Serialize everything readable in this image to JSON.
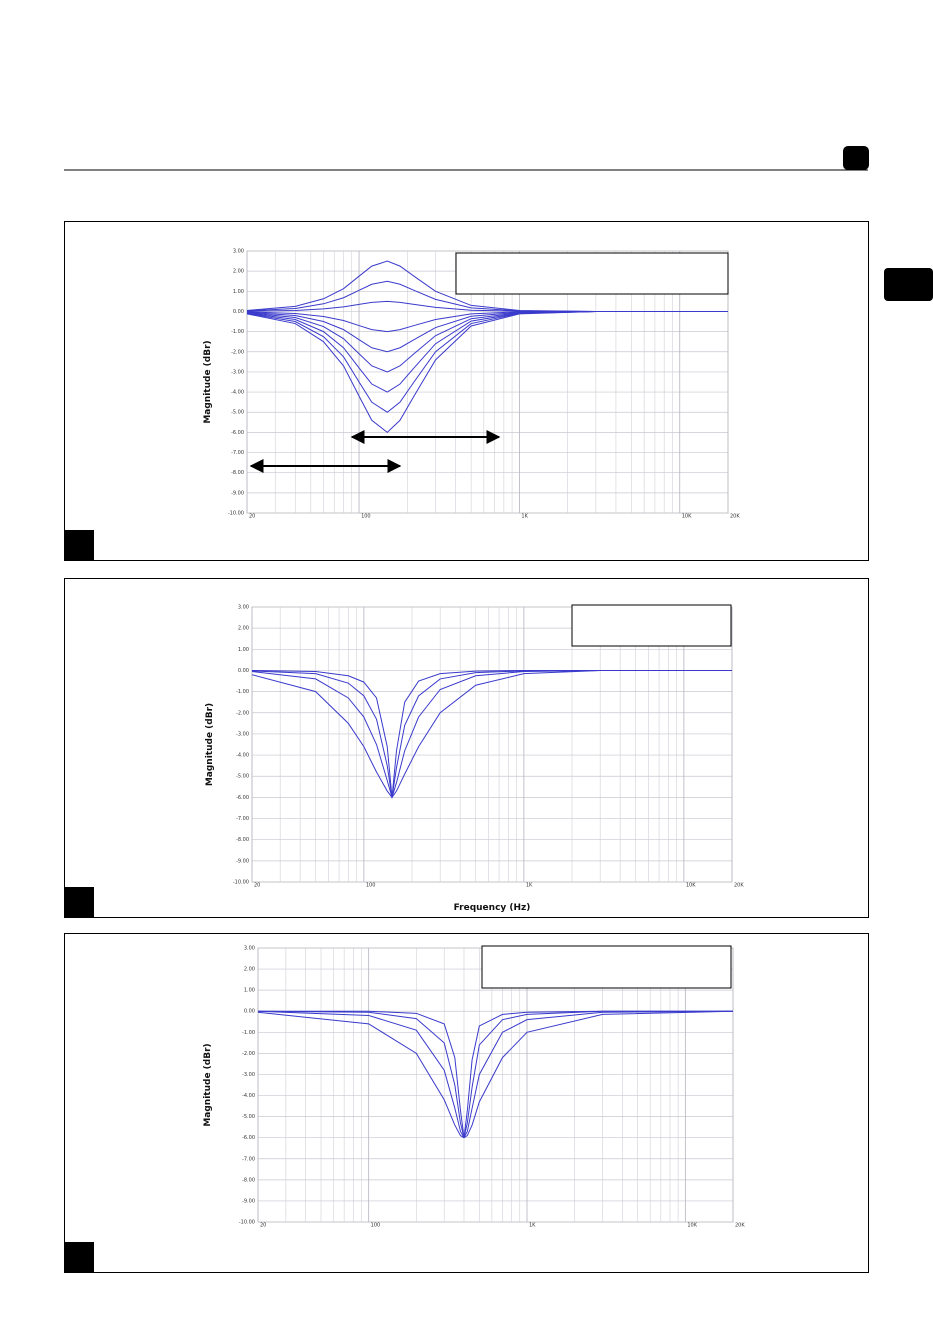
{
  "chart_data": [
    {
      "type": "line",
      "ylabel": "Magnitude (dBr)",
      "xscale": "log",
      "grid": true,
      "xlim": [
        20,
        20000
      ],
      "ylim": [
        -10,
        3
      ],
      "xticks": [
        20,
        100,
        {
          "value": 1000,
          "label": "1K"
        },
        {
          "value": 10000,
          "label": "10K"
        },
        {
          "value": 20000,
          "label": "20K"
        }
      ],
      "yticks": [
        {
          "value": 3,
          "label": "3.00"
        },
        {
          "value": 2,
          "label": "2.00"
        },
        {
          "value": 1,
          "label": "1.00"
        },
        {
          "value": 0,
          "label": "0.00"
        },
        {
          "value": -1,
          "label": "-1.00"
        },
        {
          "value": -2,
          "label": "-2.00"
        },
        {
          "value": -3,
          "label": "-3.00"
        },
        {
          "value": -4,
          "label": "-4.00"
        },
        {
          "value": -5,
          "label": "-5.00"
        },
        {
          "value": -6,
          "label": "-6.00"
        },
        {
          "value": -7,
          "label": "-7.00"
        },
        {
          "value": -8,
          "label": "-8.00"
        },
        {
          "value": -9,
          "label": "-9.00"
        },
        {
          "value": -10,
          "label": "-10.00"
        }
      ],
      "x": [
        20,
        40,
        60,
        80,
        100,
        120,
        150,
        180,
        220,
        300,
        500,
        1000,
        3000,
        20000
      ],
      "series": [
        {
          "color": "#3a3acc",
          "values": [
            0.05,
            0.25,
            0.63,
            1.13,
            1.75,
            2.25,
            2.5,
            2.25,
            1.75,
            1,
            0.3,
            0.05,
            0,
            0
          ]
        },
        {
          "color": "#3a3acc",
          "values": [
            0.03,
            0.15,
            0.38,
            0.68,
            1.05,
            1.35,
            1.5,
            1.35,
            1.05,
            0.6,
            0.18,
            0.03,
            0,
            0
          ]
        },
        {
          "color": "#3a3acc",
          "values": [
            0.01,
            0.05,
            0.13,
            0.23,
            0.35,
            0.45,
            0.5,
            0.45,
            0.35,
            0.2,
            0.06,
            0.01,
            0,
            0
          ]
        },
        {
          "color": "#3a3acc",
          "values": [
            -0.02,
            -0.1,
            -0.25,
            -0.45,
            -0.7,
            -0.9,
            -1,
            -0.9,
            -0.7,
            -0.4,
            -0.12,
            -0.02,
            0,
            0
          ]
        },
        {
          "color": "#3a3acc",
          "values": [
            -0.04,
            -0.2,
            -0.5,
            -0.9,
            -1.4,
            -1.8,
            -2,
            -1.8,
            -1.4,
            -0.8,
            -0.24,
            -0.04,
            0,
            0
          ]
        },
        {
          "color": "#3a3acc",
          "values": [
            -0.06,
            -0.3,
            -0.75,
            -1.35,
            -2.1,
            -2.7,
            -3,
            -2.7,
            -2.1,
            -1.2,
            -0.36,
            -0.06,
            0,
            0
          ]
        },
        {
          "color": "#3a3acc",
          "values": [
            -0.08,
            -0.4,
            -1,
            -1.8,
            -2.8,
            -3.6,
            -4,
            -3.6,
            -2.8,
            -1.6,
            -0.48,
            -0.08,
            0,
            0
          ]
        },
        {
          "color": "#3a3acc",
          "values": [
            -0.1,
            -0.5,
            -1.25,
            -2.25,
            -3.5,
            -4.5,
            -5,
            -4.5,
            -3.5,
            -2,
            -0.6,
            -0.1,
            0,
            0
          ]
        },
        {
          "color": "#3a3acc",
          "values": [
            -0.12,
            -0.6,
            -1.5,
            -2.7,
            -4.2,
            -5.4,
            -6,
            -5.4,
            -4.2,
            -2.4,
            -0.72,
            -0.12,
            0,
            0
          ]
        }
      ]
    },
    {
      "type": "line",
      "ylabel": "Magnitude (dBr)",
      "xlabel": "Frequency (Hz)",
      "xscale": "log",
      "grid": true,
      "xlim": [
        20,
        20000
      ],
      "ylim": [
        -10,
        3
      ],
      "xticks": [
        20,
        100,
        {
          "value": 1000,
          "label": "1K"
        },
        {
          "value": 10000,
          "label": "10K"
        },
        {
          "value": 20000,
          "label": "20K"
        }
      ],
      "yticks": [
        {
          "value": 3,
          "label": "3.00"
        },
        {
          "value": 2,
          "label": "2.00"
        },
        {
          "value": 1,
          "label": "1.00"
        },
        {
          "value": 0,
          "label": "0.00"
        },
        {
          "value": -1,
          "label": "-1.00"
        },
        {
          "value": -2,
          "label": "-2.00"
        },
        {
          "value": -3,
          "label": "-3.00"
        },
        {
          "value": -4,
          "label": "-4.00"
        },
        {
          "value": -5,
          "label": "-5.00"
        },
        {
          "value": -6,
          "label": "-6.00"
        },
        {
          "value": -7,
          "label": "-7.00"
        },
        {
          "value": -8,
          "label": "-8.00"
        },
        {
          "value": -9,
          "label": "-9.00"
        },
        {
          "value": -10,
          "label": "-10.00"
        }
      ],
      "x": [
        20,
        50,
        80,
        100,
        120,
        140,
        150,
        160,
        180,
        220,
        300,
        500,
        1000,
        3000,
        20000
      ],
      "series": [
        {
          "color": "#3a3acc",
          "values": [
            -0.2,
            -1,
            -2.5,
            -3.6,
            -4.8,
            -5.7,
            -6,
            -5.7,
            -4.9,
            -3.6,
            -2,
            -0.7,
            -0.15,
            0,
            0
          ]
        },
        {
          "color": "#3a3acc",
          "values": [
            -0.05,
            -0.4,
            -1.3,
            -2.2,
            -3.5,
            -5.2,
            -6,
            -5.3,
            -3.8,
            -2.2,
            -0.9,
            -0.25,
            -0.05,
            0,
            0
          ]
        },
        {
          "color": "#3a3acc",
          "values": [
            -0.02,
            -0.15,
            -0.6,
            -1.2,
            -2.3,
            -4.5,
            -6,
            -4.6,
            -2.6,
            -1.2,
            -0.4,
            -0.1,
            -0.02,
            0,
            0
          ]
        },
        {
          "color": "#3a3acc",
          "values": [
            0,
            -0.05,
            -0.25,
            -0.55,
            -1.3,
            -3.6,
            -6,
            -3.8,
            -1.5,
            -0.5,
            -0.15,
            -0.03,
            0,
            0,
            0
          ]
        }
      ]
    },
    {
      "type": "line",
      "ylabel": "Magnitude (dBr)",
      "xscale": "log",
      "grid": true,
      "xlim": [
        20,
        20000
      ],
      "ylim": [
        -10,
        3
      ],
      "xticks": [
        20,
        100,
        {
          "value": 1000,
          "label": "1K"
        },
        {
          "value": 10000,
          "label": "10K"
        },
        {
          "value": 20000,
          "label": "20K"
        }
      ],
      "yticks": [
        {
          "value": 3,
          "label": "3.00"
        },
        {
          "value": 2,
          "label": "2.00"
        },
        {
          "value": 1,
          "label": "1.00"
        },
        {
          "value": 0,
          "label": "0.00"
        },
        {
          "value": -1,
          "label": "-1.00"
        },
        {
          "value": -2,
          "label": "-2.00"
        },
        {
          "value": -3,
          "label": "-3.00"
        },
        {
          "value": -4,
          "label": "-4.00"
        },
        {
          "value": -5,
          "label": "-5.00"
        },
        {
          "value": -6,
          "label": "-6.00"
        },
        {
          "value": -7,
          "label": "-7.00"
        },
        {
          "value": -8,
          "label": "-8.00"
        },
        {
          "value": -9,
          "label": "-9.00"
        },
        {
          "value": -10,
          "label": "-10.00"
        }
      ],
      "x": [
        20,
        100,
        200,
        300,
        350,
        380,
        400,
        420,
        450,
        500,
        700,
        1000,
        3000,
        20000
      ],
      "series": [
        {
          "color": "#3a3acc",
          "values": [
            -0.05,
            -0.6,
            -2,
            -4.2,
            -5.4,
            -5.9,
            -6,
            -5.9,
            -5.4,
            -4.3,
            -2.2,
            -1,
            -0.15,
            0
          ]
        },
        {
          "color": "#3a3acc",
          "values": [
            0,
            -0.2,
            -0.9,
            -2.8,
            -4.6,
            -5.7,
            -6,
            -5.7,
            -4.6,
            -3,
            -1,
            -0.4,
            -0.05,
            0
          ]
        },
        {
          "color": "#3a3acc",
          "values": [
            0,
            -0.05,
            -0.35,
            -1.5,
            -3.5,
            -5.3,
            -6,
            -5.3,
            -3.6,
            -1.6,
            -0.4,
            -0.15,
            0,
            0
          ]
        },
        {
          "color": "#3a3acc",
          "values": [
            0,
            0,
            -0.1,
            -0.6,
            -2.2,
            -4.7,
            -6,
            -4.7,
            -2.3,
            -0.7,
            -0.15,
            -0.05,
            0,
            0
          ]
        }
      ]
    }
  ]
}
